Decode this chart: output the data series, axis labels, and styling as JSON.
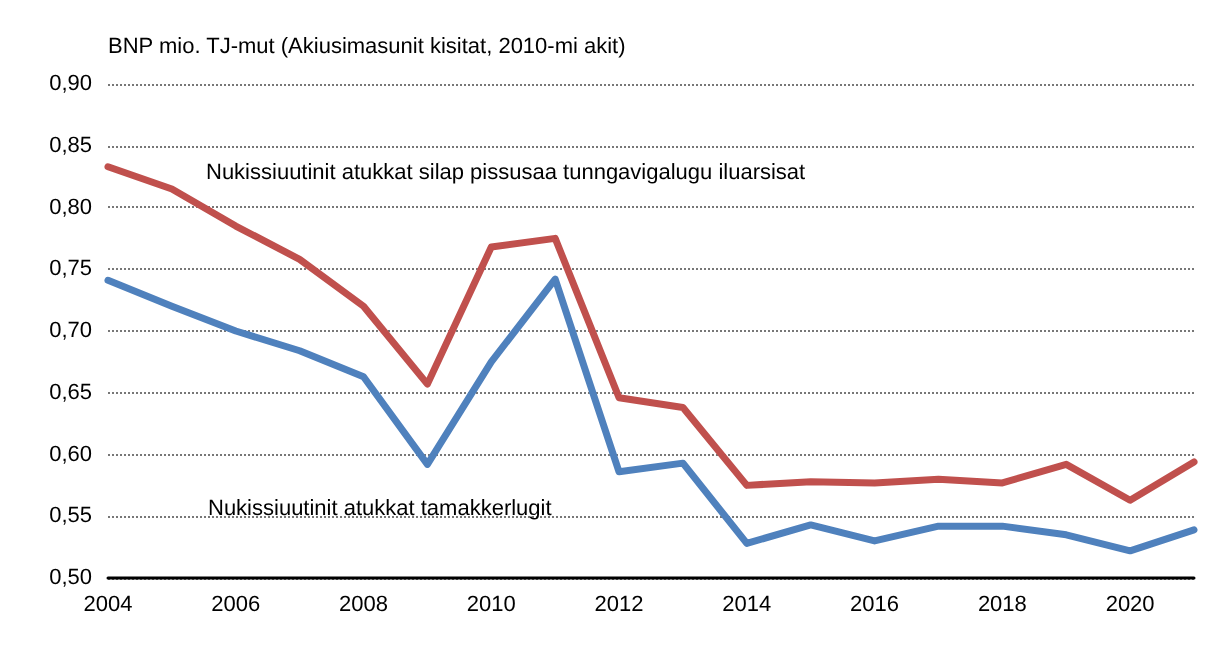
{
  "chart_data": {
    "type": "line",
    "ylabel": "BNP mio. TJ-mut (Akiusimasunit kisitat, 2010-mi akit)",
    "categories": [
      "2004",
      null,
      "2006",
      null,
      "2008",
      null,
      "2010",
      null,
      "2012",
      null,
      "2014",
      null,
      "2016",
      null,
      "2018",
      null,
      "2020",
      null
    ],
    "series": [
      {
        "name": "Nukissiuutinit atukkat silap pissusaa tunngavigalugu iluarsisat",
        "color": "#c0504d",
        "values": [
          0.833,
          0.815,
          0.785,
          0.758,
          0.72,
          0.657,
          0.768,
          0.775,
          0.646,
          0.638,
          0.575,
          0.578,
          0.577,
          0.58,
          0.577,
          0.592,
          0.563,
          0.594
        ]
      },
      {
        "name": "Nukissiuutinit atukkat tamakkerlugit",
        "color": "#4f81bd",
        "values": [
          0.741,
          0.72,
          0.7,
          0.684,
          0.663,
          0.592,
          0.675,
          0.742,
          0.586,
          0.593,
          0.528,
          0.543,
          0.53,
          0.542,
          0.542,
          0.535,
          0.522,
          0.539
        ]
      }
    ],
    "ylim": [
      0.5,
      0.9
    ],
    "yticks": [
      {
        "value": 0.5,
        "label": "0,50"
      },
      {
        "value": 0.55,
        "label": "0,55"
      },
      {
        "value": 0.6,
        "label": "0,60"
      },
      {
        "value": 0.65,
        "label": "0,65"
      },
      {
        "value": 0.7,
        "label": "0,70"
      },
      {
        "value": 0.75,
        "label": "0,75"
      },
      {
        "value": 0.8,
        "label": "0,80"
      },
      {
        "value": 0.85,
        "label": "0,85"
      },
      {
        "value": 0.9,
        "label": "0,90"
      }
    ],
    "grid": "y",
    "legend": false,
    "marker": "none",
    "line_style": "solid"
  }
}
